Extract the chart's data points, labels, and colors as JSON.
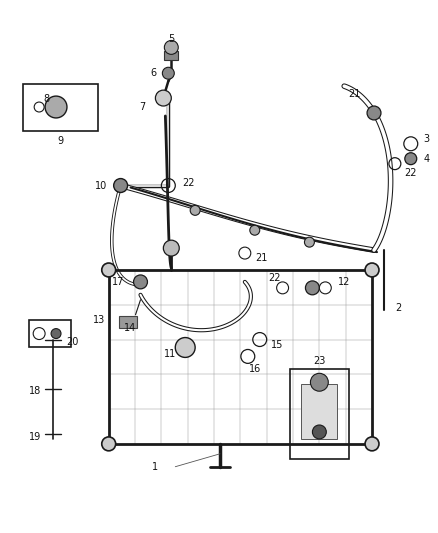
{
  "bg_color": "#ffffff",
  "line_color": "#1a1a1a",
  "label_color": "#111111",
  "font_size": 7.0,
  "fig_w": 4.38,
  "fig_h": 5.33,
  "dpi": 100
}
